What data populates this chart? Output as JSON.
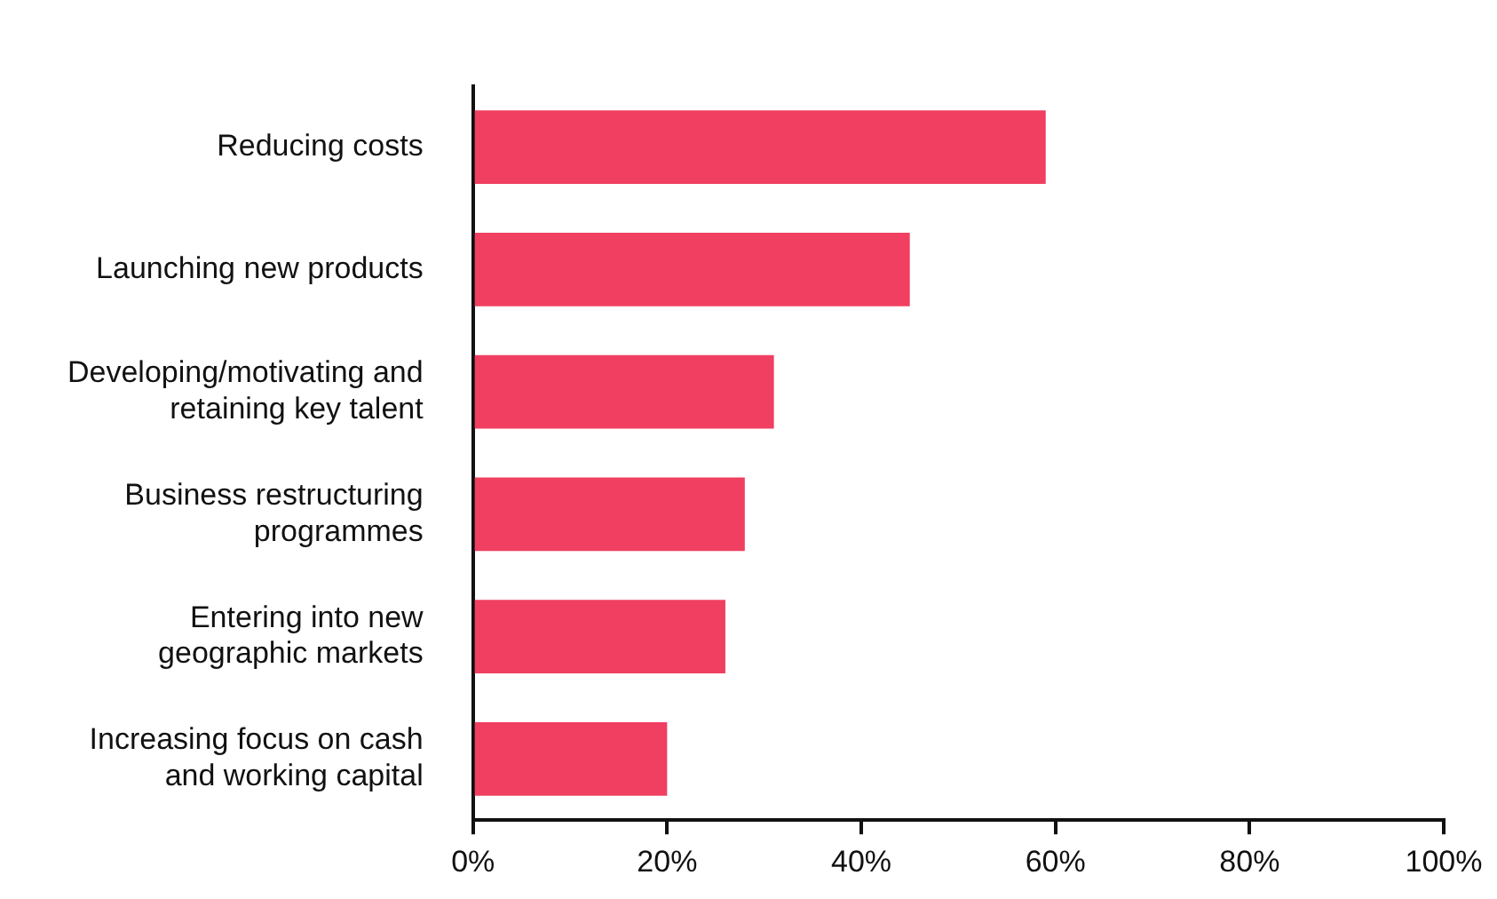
{
  "chart_data": {
    "type": "bar",
    "orientation": "horizontal",
    "categories": [
      "Reducing costs",
      "Launching new products",
      "Developing/motivating and retaining key talent",
      "Business restructuring programmes",
      "Entering into new geographic markets",
      "Increasing focus on cash and working capital"
    ],
    "values": [
      59,
      45,
      31,
      28,
      26,
      20
    ],
    "color": "#f03f61",
    "xlim": [
      0,
      100
    ],
    "xticks": [
      {
        "value": 0,
        "label": "0%"
      },
      {
        "value": 20,
        "label": "20%"
      },
      {
        "value": 40,
        "label": "40%"
      },
      {
        "value": 60,
        "label": "60%"
      },
      {
        "value": 80,
        "label": "80%"
      },
      {
        "value": 100,
        "label": "100%"
      }
    ],
    "grid": false,
    "legend": false
  }
}
